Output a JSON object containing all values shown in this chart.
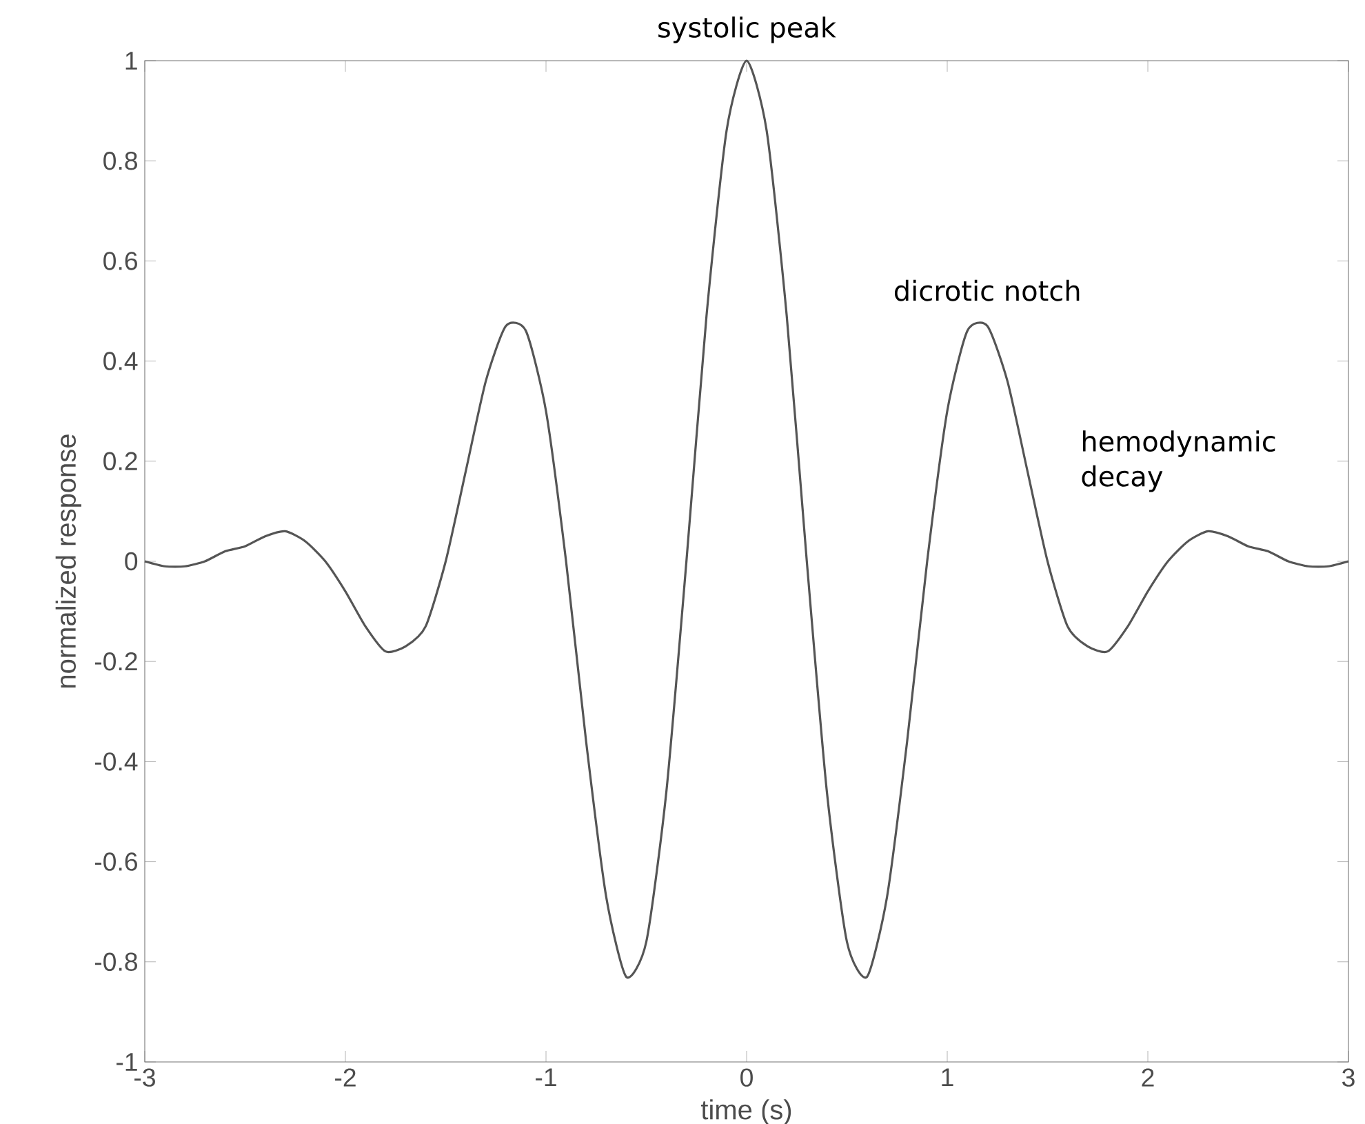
{
  "chart_data": {
    "type": "line",
    "xlabel": "time (s)",
    "ylabel": "normalized response",
    "x": [
      -3,
      -2.9,
      -2.8,
      -2.7,
      -2.6,
      -2.5,
      -2.4,
      -2.3,
      -2.2,
      -2.1,
      -2,
      -1.9,
      -1.8,
      -1.7,
      -1.6,
      -1.5,
      -1.4,
      -1.3,
      -1.2,
      -1.1,
      -1,
      -0.9,
      -0.8,
      -0.7,
      -0.6,
      -0.5,
      -0.4,
      -0.3,
      -0.2,
      -0.1,
      0,
      0.1,
      0.2,
      0.3,
      0.4,
      0.5,
      0.6,
      0.7,
      0.8,
      0.9,
      1,
      1.1,
      1.2,
      1.3,
      1.4,
      1.5,
      1.6,
      1.7,
      1.8,
      1.9,
      2,
      2.1,
      2.2,
      2.3,
      2.4,
      2.5,
      2.6,
      2.7,
      2.8,
      2.9,
      3
    ],
    "series": [
      {
        "color": "#555555",
        "values": [
          0,
          -0.01,
          -0.01,
          0,
          0.02,
          0.03,
          0.05,
          0.06,
          0.04,
          0,
          -0.06,
          -0.13,
          -0.18,
          -0.17,
          -0.13,
          0,
          0.18,
          0.36,
          0.47,
          0.46,
          0.3,
          0,
          -0.36,
          -0.67,
          -0.83,
          -0.76,
          -0.46,
          0,
          0.49,
          0.86,
          1,
          0.86,
          0.49,
          0,
          -0.46,
          -0.76,
          -0.83,
          -0.67,
          -0.36,
          0,
          0.3,
          0.46,
          0.47,
          0.36,
          0.18,
          0,
          -0.13,
          -0.17,
          -0.18,
          -0.13,
          -0.06,
          0,
          0.04,
          0.06,
          0.05,
          0.03,
          0.02,
          0,
          -0.01,
          -0.01,
          0
        ]
      }
    ],
    "xlim": [
      -3,
      3
    ],
    "ylim": [
      -1,
      1
    ],
    "xticks": [
      -3,
      -2,
      -1,
      0,
      1,
      2,
      3
    ],
    "yticks": [
      -1,
      -0.8,
      -0.6,
      -0.4,
      -0.2,
      0,
      0.2,
      0.4,
      0.6,
      0.8,
      1
    ],
    "grid": false,
    "marker": "none",
    "line_style": "solid",
    "annotations": [
      {
        "text": "systolic peak",
        "x": 0,
        "y": 1
      },
      {
        "text": "dicrotic notch",
        "x": 1.2,
        "y": 0.47
      },
      "hemodynamic decay"
    ]
  }
}
